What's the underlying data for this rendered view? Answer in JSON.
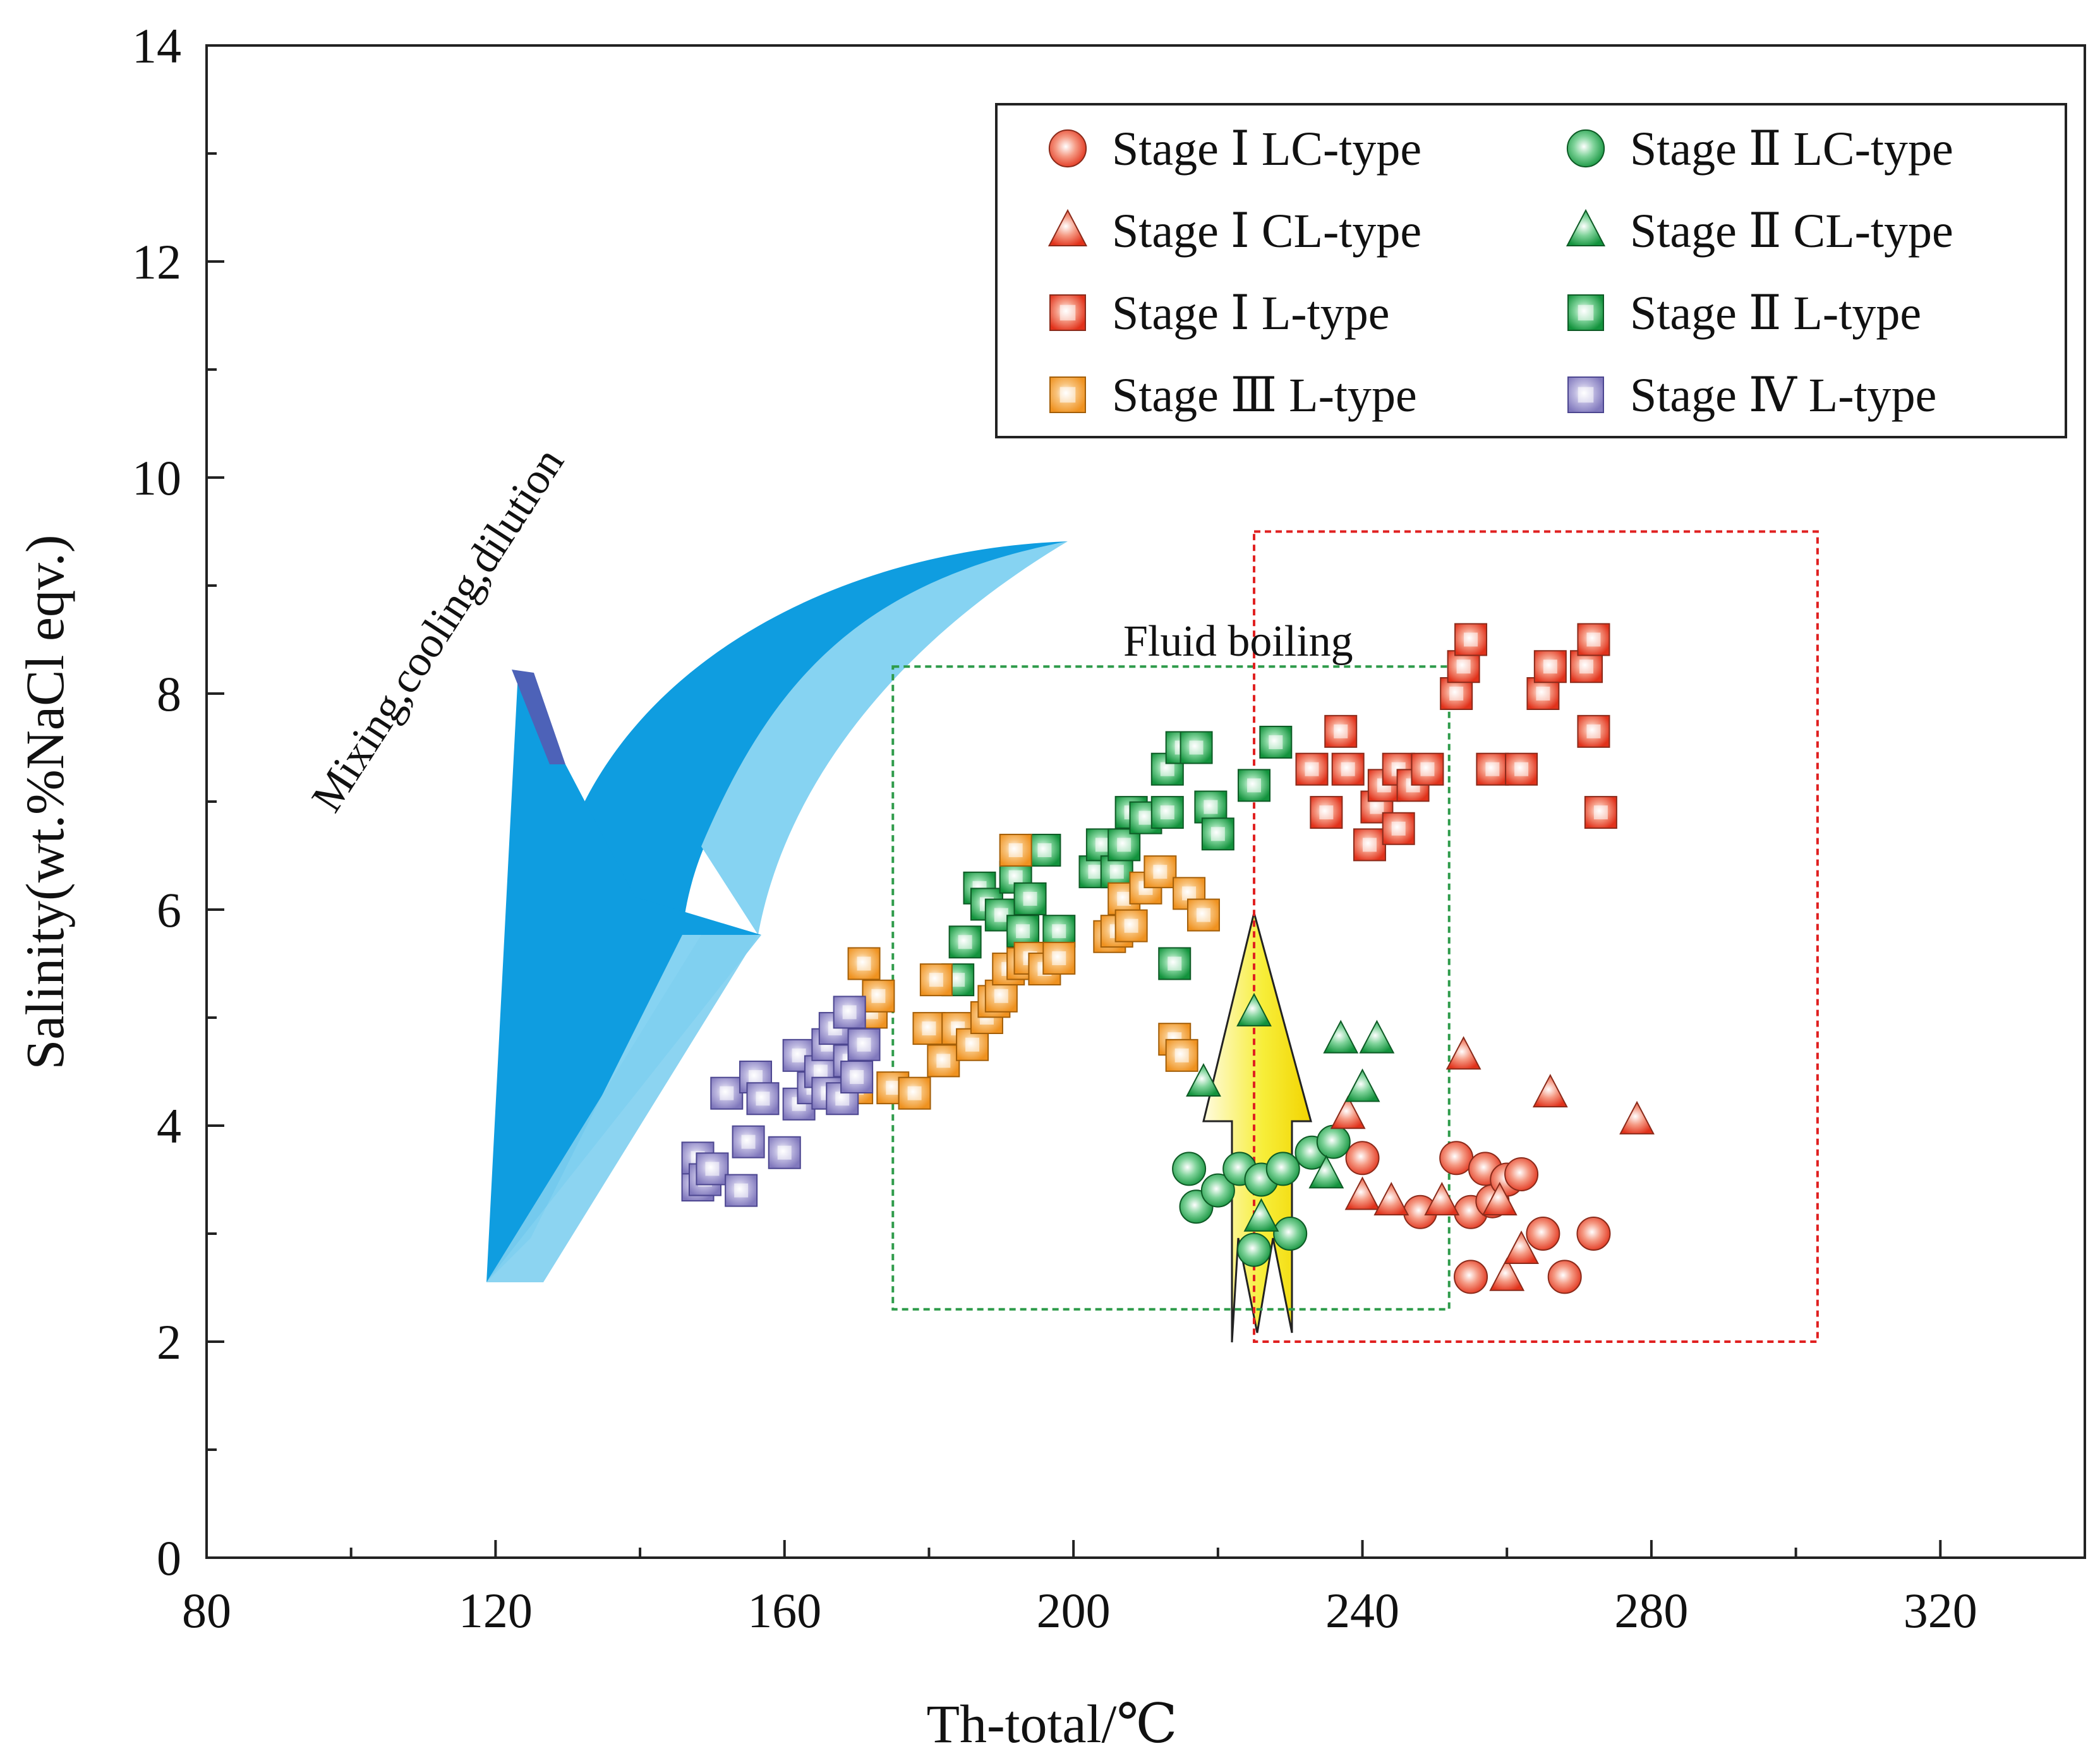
{
  "chart_data": {
    "type": "scatter",
    "title": "",
    "xlabel": "Th-total/℃",
    "ylabel": "Salinity(wt.%NaCl eqv.)",
    "xlim": [
      80,
      340
    ],
    "ylim": [
      0,
      14
    ],
    "xticks": [
      80,
      120,
      160,
      200,
      240,
      280,
      320
    ],
    "yticks": [
      0,
      2,
      4,
      6,
      8,
      10,
      12,
      14
    ],
    "xminor": [
      100,
      140,
      180,
      220,
      260,
      300
    ],
    "yminor": [
      1,
      3,
      5,
      7,
      9,
      11,
      13
    ],
    "grid": false,
    "legend_position": "top-right",
    "annotations": {
      "arrow_label": "Mixing,cooling,dilution",
      "boiling_label": "Fluid boiling"
    },
    "regions": [
      {
        "name": "green-box",
        "x": [
          175,
          252
        ],
        "y": [
          2.3,
          8.25
        ],
        "color": "#2e9b4a"
      },
      {
        "name": "red-box",
        "x": [
          225,
          303
        ],
        "y": [
          2.0,
          9.5
        ],
        "color": "#e02020"
      }
    ],
    "series": [
      {
        "name": "Stage Ⅰ LC-type",
        "marker": "circle",
        "color": "#e8432b",
        "points": [
          [
            240,
            3.7
          ],
          [
            248,
            3.2
          ],
          [
            253,
            3.7
          ],
          [
            255,
            3.2
          ],
          [
            255,
            2.6
          ],
          [
            257,
            3.6
          ],
          [
            258,
            3.3
          ],
          [
            260,
            3.5
          ],
          [
            262,
            3.55
          ],
          [
            265,
            3.0
          ],
          [
            268,
            2.6
          ],
          [
            272,
            3.0
          ]
        ]
      },
      {
        "name": "Stage Ⅱ LC-type",
        "marker": "circle",
        "color": "#1f9a46",
        "points": [
          [
            216,
            3.6
          ],
          [
            217,
            3.25
          ],
          [
            220,
            3.4
          ],
          [
            223,
            3.6
          ],
          [
            225,
            2.85
          ],
          [
            226,
            3.5
          ],
          [
            229,
            3.6
          ],
          [
            230,
            3.0
          ],
          [
            233,
            3.75
          ],
          [
            236,
            3.85
          ]
        ]
      },
      {
        "name": "Stage Ⅰ CL-type",
        "marker": "triangle",
        "color": "#e8432b",
        "points": [
          [
            238,
            4.1
          ],
          [
            240,
            3.35
          ],
          [
            244,
            3.3
          ],
          [
            251,
            3.3
          ],
          [
            254,
            4.65
          ],
          [
            259,
            3.3
          ],
          [
            260,
            2.6
          ],
          [
            262,
            2.85
          ],
          [
            266,
            4.3
          ],
          [
            278,
            4.05
          ]
        ]
      },
      {
        "name": "Stage Ⅱ CL-type",
        "marker": "triangle",
        "color": "#1f9a46",
        "points": [
          [
            218,
            4.4
          ],
          [
            225,
            5.05
          ],
          [
            226,
            3.15
          ],
          [
            235,
            3.55
          ],
          [
            237,
            4.8
          ],
          [
            240,
            4.35
          ],
          [
            242,
            4.8
          ]
        ]
      },
      {
        "name": "Stage Ⅰ L-type",
        "marker": "square",
        "color": "#e8432b",
        "points": [
          [
            233,
            7.3
          ],
          [
            235,
            6.9
          ],
          [
            237,
            7.65
          ],
          [
            238,
            7.3
          ],
          [
            241,
            6.6
          ],
          [
            242,
            6.95
          ],
          [
            243,
            7.15
          ],
          [
            245,
            7.3
          ],
          [
            245,
            6.75
          ],
          [
            247,
            7.15
          ],
          [
            249,
            7.3
          ],
          [
            253,
            8.0
          ],
          [
            254,
            8.25
          ],
          [
            255,
            8.5
          ],
          [
            258,
            7.3
          ],
          [
            262,
            7.3
          ],
          [
            265,
            8.0
          ],
          [
            266,
            8.25
          ],
          [
            271,
            8.25
          ],
          [
            272,
            7.65
          ],
          [
            272,
            8.5
          ],
          [
            273,
            6.9
          ]
        ]
      },
      {
        "name": "Stage Ⅱ L-type",
        "marker": "square",
        "color": "#1f9a46",
        "points": [
          [
            184,
            5.35
          ],
          [
            185,
            5.7
          ],
          [
            187,
            6.2
          ],
          [
            188,
            6.05
          ],
          [
            190,
            5.95
          ],
          [
            192,
            6.3
          ],
          [
            193,
            5.8
          ],
          [
            194,
            6.1
          ],
          [
            196,
            6.55
          ],
          [
            198,
            5.8
          ],
          [
            203,
            6.35
          ],
          [
            204,
            6.6
          ],
          [
            206,
            6.35
          ],
          [
            207,
            6.6
          ],
          [
            208,
            6.9
          ],
          [
            210,
            6.85
          ],
          [
            213,
            6.9
          ],
          [
            213,
            7.3
          ],
          [
            214,
            5.5
          ],
          [
            215,
            7.5
          ],
          [
            217,
            7.5
          ],
          [
            219,
            6.95
          ],
          [
            220,
            6.7
          ],
          [
            225,
            7.15
          ],
          [
            228,
            7.55
          ]
        ]
      },
      {
        "name": "Stage Ⅲ L-type",
        "marker": "square",
        "color": "#f29a24",
        "points": [
          [
            170,
            4.35
          ],
          [
            171,
            5.5
          ],
          [
            172,
            5.05
          ],
          [
            173,
            5.2
          ],
          [
            175,
            4.35
          ],
          [
            178,
            4.3
          ],
          [
            180,
            4.9
          ],
          [
            181,
            5.35
          ],
          [
            182,
            4.6
          ],
          [
            184,
            4.9
          ],
          [
            186,
            4.75
          ],
          [
            188,
            5.0
          ],
          [
            189,
            5.15
          ],
          [
            190,
            5.2
          ],
          [
            191,
            5.45
          ],
          [
            192,
            6.55
          ],
          [
            193,
            5.5
          ],
          [
            194,
            5.55
          ],
          [
            196,
            5.45
          ],
          [
            198,
            5.55
          ],
          [
            205,
            5.75
          ],
          [
            206,
            5.8
          ],
          [
            207,
            6.1
          ],
          [
            208,
            5.85
          ],
          [
            210,
            6.2
          ],
          [
            212,
            6.35
          ],
          [
            214,
            4.8
          ],
          [
            215,
            4.65
          ],
          [
            216,
            6.15
          ],
          [
            218,
            5.95
          ]
        ]
      },
      {
        "name": "Stage Ⅳ L-type",
        "marker": "square",
        "color": "#8b84c0",
        "points": [
          [
            148,
            3.45
          ],
          [
            148,
            3.7
          ],
          [
            149,
            3.5
          ],
          [
            150,
            3.6
          ],
          [
            152,
            4.3
          ],
          [
            154,
            3.4
          ],
          [
            155,
            3.85
          ],
          [
            156,
            4.45
          ],
          [
            157,
            4.25
          ],
          [
            160,
            3.75
          ],
          [
            162,
            4.2
          ],
          [
            162,
            4.65
          ],
          [
            164,
            4.35
          ],
          [
            165,
            4.5
          ],
          [
            166,
            4.75
          ],
          [
            166,
            4.3
          ],
          [
            167,
            4.9
          ],
          [
            168,
            4.25
          ],
          [
            169,
            4.6
          ],
          [
            169,
            5.05
          ],
          [
            170,
            4.45
          ],
          [
            171,
            4.75
          ]
        ]
      }
    ]
  }
}
